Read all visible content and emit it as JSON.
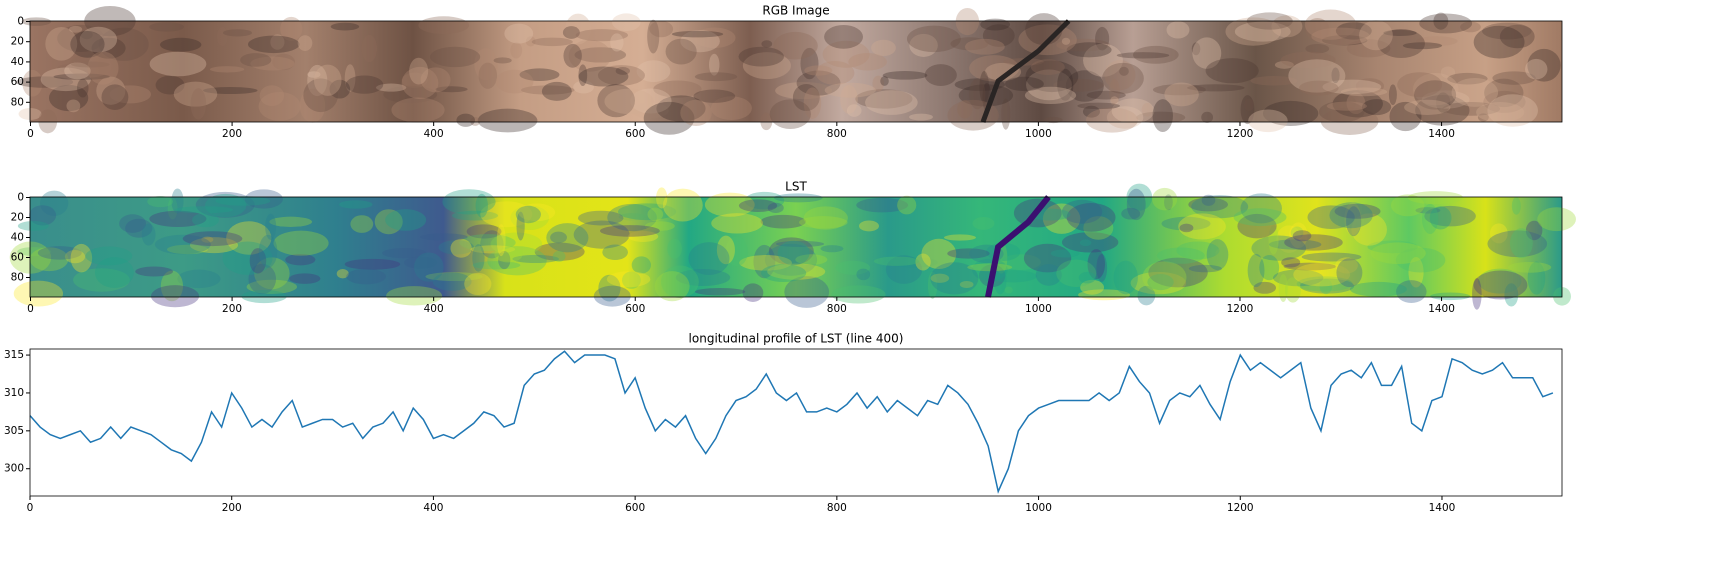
{
  "chart_data": [
    {
      "type": "image",
      "title": "RGB Image",
      "xlim": [
        -0.5,
        1519.5
      ],
      "ylim": [
        99.5,
        -0.5
      ],
      "xticks": [
        0,
        200,
        400,
        600,
        800,
        1000,
        1200,
        1400
      ],
      "yticks": [
        0,
        20,
        40,
        60,
        80
      ],
      "colormap": "rgb"
    },
    {
      "type": "image",
      "title": "LST",
      "xlim": [
        -0.5,
        1519.5
      ],
      "ylim": [
        99.5,
        -0.5
      ],
      "xticks": [
        0,
        200,
        400,
        600,
        800,
        1000,
        1200,
        1400
      ],
      "yticks": [
        0,
        20,
        40,
        60,
        80
      ],
      "colormap": "viridis"
    },
    {
      "type": "line",
      "title": "longitudinal profile of LST (line 400)",
      "xlim": [
        0,
        1519
      ],
      "ylim": [
        296.4,
        315.8
      ],
      "xticks": [
        0,
        200,
        400,
        600,
        800,
        1000,
        1200,
        1400
      ],
      "yticks": [
        300,
        305,
        310,
        315
      ],
      "color": "#1f77b4",
      "x": [
        0,
        10,
        20,
        30,
        40,
        50,
        60,
        70,
        80,
        90,
        100,
        110,
        120,
        130,
        140,
        150,
        160,
        170,
        180,
        190,
        200,
        210,
        220,
        230,
        240,
        250,
        260,
        270,
        280,
        290,
        300,
        310,
        320,
        330,
        340,
        350,
        360,
        370,
        380,
        390,
        400,
        410,
        420,
        430,
        440,
        450,
        460,
        470,
        480,
        490,
        500,
        510,
        520,
        530,
        540,
        550,
        560,
        570,
        580,
        590,
        600,
        610,
        620,
        630,
        640,
        650,
        660,
        670,
        680,
        690,
        700,
        710,
        720,
        730,
        740,
        750,
        760,
        770,
        780,
        790,
        800,
        810,
        820,
        830,
        840,
        850,
        860,
        870,
        880,
        890,
        900,
        910,
        920,
        930,
        940,
        950,
        960,
        970,
        980,
        990,
        1000,
        1010,
        1020,
        1030,
        1040,
        1050,
        1060,
        1070,
        1080,
        1090,
        1100,
        1110,
        1120,
        1130,
        1140,
        1150,
        1160,
        1170,
        1180,
        1190,
        1200,
        1210,
        1220,
        1230,
        1240,
        1250,
        1260,
        1270,
        1280,
        1290,
        1300,
        1310,
        1320,
        1330,
        1340,
        1350,
        1360,
        1370,
        1380,
        1390,
        1400,
        1410,
        1420,
        1430,
        1440,
        1450,
        1460,
        1470,
        1480,
        1490,
        1500,
        1510
      ],
      "values": [
        307,
        305.5,
        304.5,
        304,
        304.5,
        305,
        303.5,
        304,
        305.5,
        304,
        305.5,
        305,
        304.5,
        303.5,
        302.5,
        302,
        301,
        303.5,
        307.5,
        305.5,
        310,
        308,
        305.5,
        306.5,
        305.5,
        307.5,
        309,
        305.5,
        306,
        306.5,
        306.5,
        305.5,
        306,
        304,
        305.5,
        306,
        307.5,
        305,
        308,
        306.5,
        304,
        304.5,
        304,
        305,
        306,
        307.5,
        307,
        305.5,
        306,
        311,
        312.5,
        313,
        314.5,
        315.5,
        314,
        315,
        315,
        315,
        314.5,
        310,
        312,
        308,
        305,
        306.5,
        305.5,
        307,
        304,
        302,
        304,
        307,
        309,
        309.5,
        310.5,
        312.5,
        310,
        309,
        310,
        307.5,
        307.5,
        308,
        307.5,
        308.5,
        310,
        308,
        309.5,
        307.5,
        309,
        308,
        307,
        309,
        308.5,
        311,
        310,
        308.5,
        306,
        303,
        297,
        300,
        305,
        307,
        308,
        308.5,
        309,
        309,
        309,
        309,
        310,
        309,
        310,
        313.5,
        311.5,
        310,
        306,
        309,
        310,
        309.5,
        311,
        308.5,
        306.5,
        311.5,
        315,
        313,
        314,
        313,
        312,
        313,
        314,
        308,
        305,
        311,
        312.5,
        313,
        312,
        314,
        311,
        311,
        313.5,
        306,
        305,
        309,
        309.5,
        314.5,
        314,
        313,
        312.5,
        313,
        314,
        312,
        312,
        312,
        309.5,
        310
      ]
    }
  ]
}
